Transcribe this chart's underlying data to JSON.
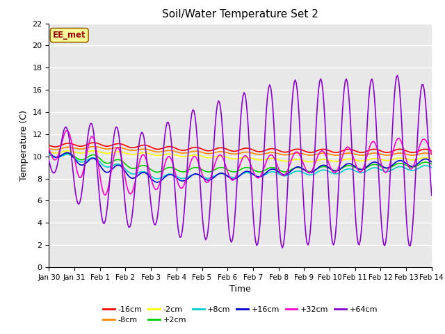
{
  "title": "Soil/Water Temperature Set 2",
  "xlabel": "Time",
  "ylabel": "Temperature (C)",
  "ylim": [
    0,
    22
  ],
  "yticks": [
    0,
    2,
    4,
    6,
    8,
    10,
    12,
    14,
    16,
    18,
    20,
    22
  ],
  "bg_color": "#ffffff",
  "plot_bg_color": "#e8e8e8",
  "watermark": "EE_met",
  "series": [
    {
      "label": "-16cm",
      "color": "#ff0000"
    },
    {
      "label": "-8cm",
      "color": "#ff8800"
    },
    {
      "label": "-2cm",
      "color": "#ffff00"
    },
    {
      "label": "+2cm",
      "color": "#00cc00"
    },
    {
      "label": "+8cm",
      "color": "#00cccc"
    },
    {
      "label": "+16cm",
      "color": "#0000cc"
    },
    {
      "label": "+32cm",
      "color": "#ff00cc"
    },
    {
      "label": "+64cm",
      "color": "#8800cc"
    }
  ],
  "x_labels": [
    "Jan 30",
    "Jan 31",
    "Feb 1",
    "Feb 2",
    "Feb 3",
    "Feb 4",
    "Feb 5",
    "Feb 6",
    "Feb 7",
    "Feb 8",
    "Feb 9",
    "Feb 10",
    "Feb 11",
    "Feb 12",
    "Feb 13",
    "Feb 14"
  ],
  "legend_fontsize": 8,
  "title_fontsize": 11,
  "axis_label_fontsize": 9
}
